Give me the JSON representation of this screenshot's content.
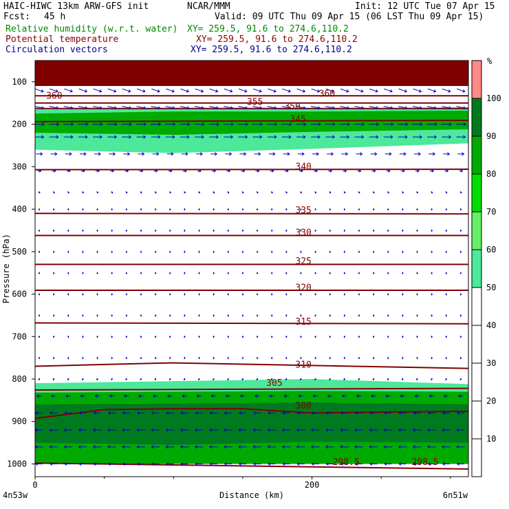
{
  "header": {
    "title_left": "HAIC-HIWC 13km ARW-GFS init",
    "source": "NCAR/MMM",
    "init": "Init: 12 UTC Tue 07 Apr 15",
    "fcst_label": "Fcst:",
    "fcst_value": "45 h",
    "valid": "Valid: 09 UTC Thu 09 Apr 15 (06 LST Thu 09 Apr 15)"
  },
  "fields": [
    {
      "label": "Relative humidity (w.r.t. water)",
      "xy": "XY= 259.5, 91.6 to 274.6,110.2"
    },
    {
      "label": "Potential temperature",
      "xy": "XY= 259.5, 91.6 to 274.6,110.2"
    },
    {
      "label": "Circulation vectors",
      "xy": "XY= 259.5, 91.6 to 274.6,110.2"
    }
  ],
  "colors": {
    "header_text": "#000000",
    "rh_text": "#008800",
    "theta_text": "#880000",
    "vector_text": "#000088",
    "theta_line": "#800000",
    "vector": "#0000cc"
  },
  "chart_data": {
    "type": "cross-section",
    "xlabel": "Distance (km)",
    "ylabel": "Pressure (hPa)",
    "x_ticks": [
      0,
      200
    ],
    "x_range": [
      0,
      313
    ],
    "y_ticks": [
      100,
      200,
      300,
      400,
      500,
      600,
      700,
      800,
      900,
      1000
    ],
    "y_range": [
      50,
      1030
    ],
    "x_end_labels": [
      "4n53w",
      "6n51w"
    ],
    "colorbar": {
      "unit": "%",
      "ticks": [
        10,
        20,
        30,
        40,
        50,
        60,
        70,
        80,
        90,
        100
      ],
      "bins": [
        {
          "from": 50,
          "to": 60,
          "color": "#4de89a"
        },
        {
          "from": 60,
          "to": 70,
          "color": "#66ee66"
        },
        {
          "from": 70,
          "to": 80,
          "color": "#00dd00"
        },
        {
          "from": 80,
          "to": 90,
          "color": "#00aa00"
        },
        {
          "from": 90,
          "to": 100,
          "color": "#007a1f"
        },
        {
          "from": 100,
          "to": 110,
          "color": "#ff8888"
        }
      ]
    },
    "rh_layers": [
      {
        "color": "#800000",
        "x": [
          0,
          313
        ],
        "top": [
          50,
          50
        ],
        "bottom": [
          110,
          110
        ]
      },
      {
        "color": "#4de89a",
        "x": [
          0,
          100,
          200,
          313
        ],
        "top": [
          165,
          163,
          163,
          160
        ],
        "bottom": [
          260,
          268,
          258,
          245
        ]
      },
      {
        "color": "#00aa00",
        "x": [
          0,
          100,
          200,
          313
        ],
        "top": [
          175,
          170,
          170,
          168
        ],
        "bottom": [
          220,
          225,
          218,
          212
        ]
      },
      {
        "color": "#4de89a",
        "x": [
          0,
          100,
          200,
          313
        ],
        "top": [
          810,
          805,
          800,
          812
        ],
        "bottom": [
          1000,
          1000,
          1000,
          1000
        ]
      },
      {
        "color": "#00aa00",
        "x": [
          0,
          100,
          200,
          313
        ],
        "top": [
          832,
          830,
          828,
          830
        ],
        "bottom": [
          1000,
          1000,
          1000,
          1000
        ]
      },
      {
        "color": "#007a1f",
        "x": [
          0,
          100,
          200,
          313
        ],
        "top": [
          860,
          858,
          855,
          860
        ],
        "bottom": [
          950,
          955,
          948,
          950
        ]
      }
    ],
    "theta_contours": [
      {
        "level": 360,
        "x": [
          0,
          313
        ],
        "p": [
          133,
          133
        ]
      },
      {
        "level": 355,
        "x": [
          0,
          313
        ],
        "p": [
          150,
          150
        ]
      },
      {
        "level": 350,
        "x": [
          0,
          313
        ],
        "p": [
          163,
          163
        ]
      },
      {
        "level": 345,
        "x": [
          0,
          313
        ],
        "p": [
          194,
          191
        ]
      },
      {
        "level": 340,
        "x": [
          0,
          313
        ],
        "p": [
          307,
          306
        ]
      },
      {
        "level": 335,
        "x": [
          0,
          313
        ],
        "p": [
          410,
          411
        ]
      },
      {
        "level": 330,
        "x": [
          0,
          313
        ],
        "p": [
          462,
          462
        ]
      },
      {
        "level": 325,
        "x": [
          0,
          313
        ],
        "p": [
          530,
          530
        ]
      },
      {
        "level": 320,
        "x": [
          0,
          313
        ],
        "p": [
          591,
          591
        ]
      },
      {
        "level": 315,
        "x": [
          0,
          313
        ],
        "p": [
          668,
          670
        ]
      },
      {
        "level": 310,
        "x": [
          0,
          60,
          100,
          313
        ],
        "p": [
          770,
          765,
          762,
          775
        ]
      },
      {
        "level": 305,
        "x": [
          0,
          313
        ],
        "p": [
          826,
          822
        ]
      },
      {
        "level": 300,
        "x": [
          0,
          50,
          100,
          150,
          200,
          250,
          313
        ],
        "p": [
          893,
          872,
          870,
          870,
          880,
          878,
          876
        ]
      },
      {
        "level": 298.5,
        "x": [
          0,
          313
        ],
        "p": [
          998,
          1012
        ]
      }
    ],
    "contour_labels": [
      {
        "text": "360",
        "x": 8,
        "p": 135
      },
      {
        "text": "355",
        "x": 153,
        "p": 150
      },
      {
        "text": "350",
        "x": 180,
        "p": 160
      },
      {
        "text": "360",
        "x": 205,
        "p": 130
      },
      {
        "text": "345",
        "x": 184,
        "p": 190
      },
      {
        "text": "340",
        "x": 188,
        "p": 302
      },
      {
        "text": "335",
        "x": 188,
        "p": 405
      },
      {
        "text": "330",
        "x": 188,
        "p": 457
      },
      {
        "text": "325",
        "x": 188,
        "p": 525
      },
      {
        "text": "320",
        "x": 188,
        "p": 587
      },
      {
        "text": "315",
        "x": 188,
        "p": 667
      },
      {
        "text": "310",
        "x": 188,
        "p": 768
      },
      {
        "text": "305",
        "x": 167,
        "p": 811
      },
      {
        "text": "300",
        "x": 188,
        "p": 865
      },
      {
        "text": "298.5",
        "x": 215,
        "p": 998
      },
      {
        "text": "298.5",
        "x": 272,
        "p": 998
      }
    ],
    "vector_levels": [
      {
        "p": 120,
        "u": 9,
        "w": -3
      },
      {
        "p": 160,
        "u": 10,
        "w": -2
      },
      {
        "p": 200,
        "u": 11,
        "w": 0
      },
      {
        "p": 230,
        "u": 10,
        "w": 0
      },
      {
        "p": 270,
        "u": 7,
        "w": 0
      },
      {
        "p": 310,
        "u": 4,
        "w": 0
      },
      {
        "p": 360,
        "u": 1,
        "w": -2
      },
      {
        "p": 400,
        "u": 0,
        "w": -2
      },
      {
        "p": 450,
        "u": 0,
        "w": -2
      },
      {
        "p": 500,
        "u": 0,
        "w": -2
      },
      {
        "p": 550,
        "u": 0,
        "w": -2
      },
      {
        "p": 600,
        "u": 0,
        "w": -2
      },
      {
        "p": 650,
        "u": 0,
        "w": -2
      },
      {
        "p": 700,
        "u": 0,
        "w": -2
      },
      {
        "p": 750,
        "u": 0,
        "w": -2
      },
      {
        "p": 800,
        "u": -1,
        "w": -2
      },
      {
        "p": 840,
        "u": -5,
        "w": 0
      },
      {
        "p": 880,
        "u": -8,
        "w": 0
      },
      {
        "p": 920,
        "u": -9,
        "w": 0
      },
      {
        "p": 960,
        "u": -9,
        "w": 0
      },
      {
        "p": 1000,
        "u": -8,
        "w": 0
      }
    ]
  }
}
